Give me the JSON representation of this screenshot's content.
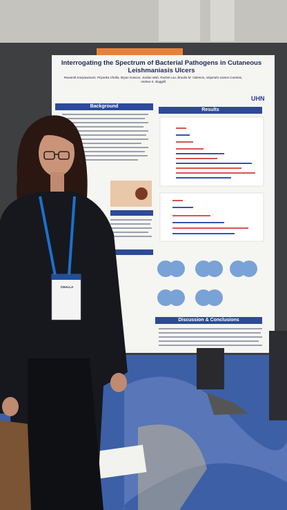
{
  "poster": {
    "title": "Interrogating the Spectrum of Bacterial Pathogens in Cutaneous Leishmaniasis Ulcers",
    "authors": "Ruwandi Kariyawasam, Priyanka Challa, Bryan Gascon, Jordan Mah, Rachel Lau, Braulio M. Valencia, Alejandro Llanos-Cuentas, Andrea K. Boggild",
    "logo": "UHN",
    "sections": [
      "Background",
      "Results",
      "Discussion & Conclusions"
    ]
  },
  "badge": {
    "name": "CHALLA"
  }
}
